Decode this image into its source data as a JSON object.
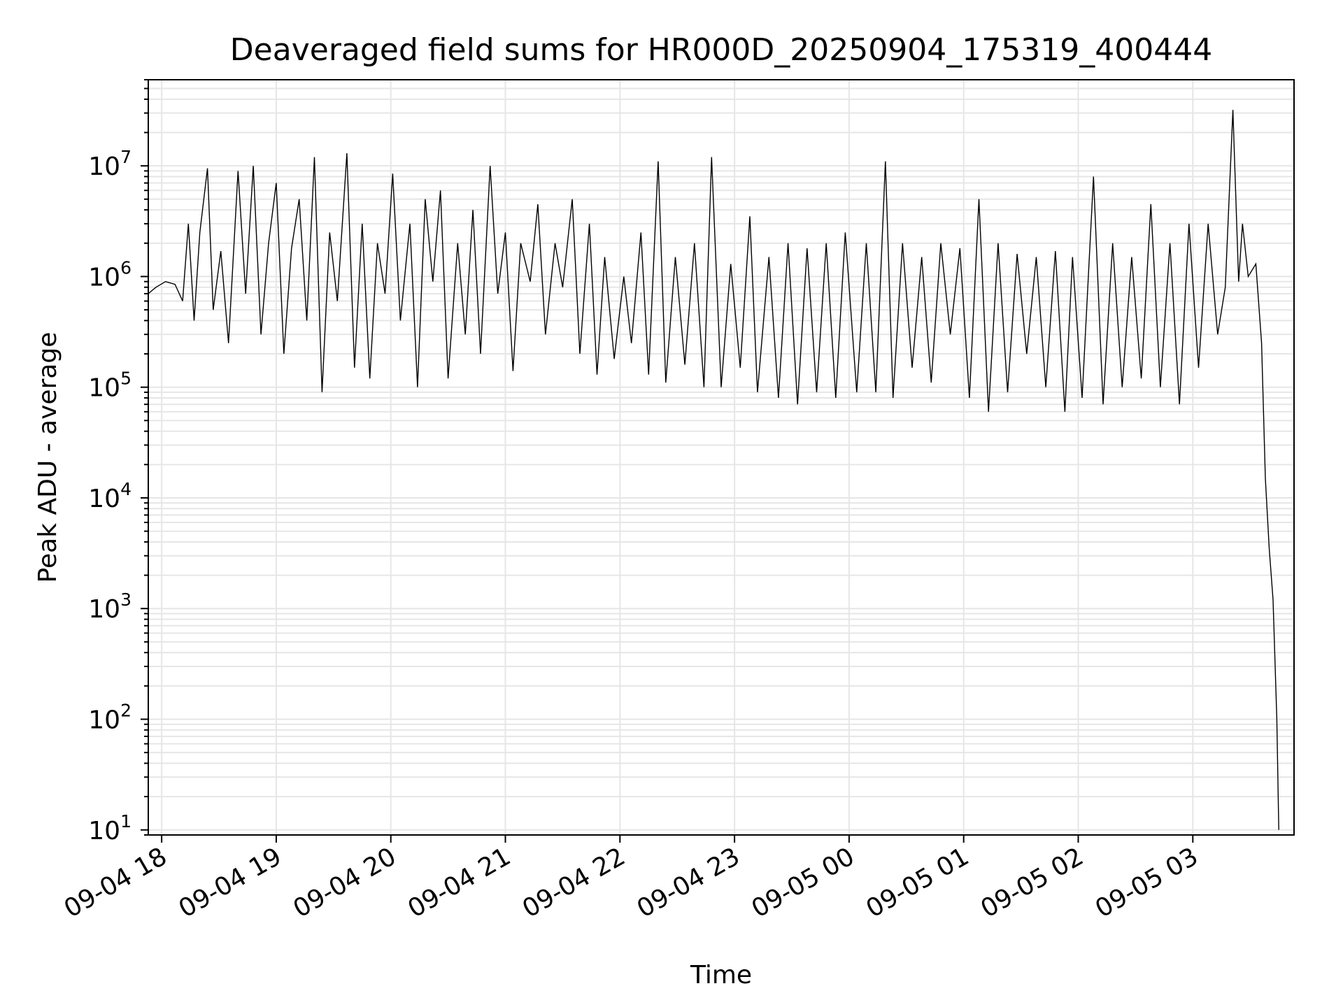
{
  "chart_data": {
    "type": "line",
    "title": "Deaveraged field sums for HR000D_20250904_175319_400444",
    "xlabel": "Time",
    "ylabel": "Peak ADU - average",
    "y_scale": "log",
    "ylim": [
      9,
      60000000
    ],
    "xlim": [
      "2025-09-04 17:53:00",
      "2025-09-05 03:53:00"
    ],
    "grid": true,
    "grid_minor": true,
    "x_ticks": [
      {
        "t": "2025-09-04 18:00",
        "label": "09-04 18"
      },
      {
        "t": "2025-09-04 19:00",
        "label": "09-04 19"
      },
      {
        "t": "2025-09-04 20:00",
        "label": "09-04 20"
      },
      {
        "t": "2025-09-04 21:00",
        "label": "09-04 21"
      },
      {
        "t": "2025-09-04 22:00",
        "label": "09-04 22"
      },
      {
        "t": "2025-09-04 23:00",
        "label": "09-04 23"
      },
      {
        "t": "2025-09-05 00:00",
        "label": "09-05 00"
      },
      {
        "t": "2025-09-05 01:00",
        "label": "09-05 01"
      },
      {
        "t": "2025-09-05 02:00",
        "label": "09-05 02"
      },
      {
        "t": "2025-09-05 03:00",
        "label": "09-05 03"
      }
    ],
    "y_ticks": [
      {
        "value": 10,
        "base": "10",
        "exp": "1"
      },
      {
        "value": 100,
        "base": "10",
        "exp": "2"
      },
      {
        "value": 1000,
        "base": "10",
        "exp": "3"
      },
      {
        "value": 10000,
        "base": "10",
        "exp": "4"
      },
      {
        "value": 100000,
        "base": "10",
        "exp": "5"
      },
      {
        "value": 1000000,
        "base": "10",
        "exp": "6"
      },
      {
        "value": 10000000,
        "base": "10",
        "exp": "7"
      }
    ],
    "series": [
      {
        "color": "#000000",
        "points": [
          [
            "2025-09-04 17:53",
            700000
          ],
          [
            "2025-09-04 17:57",
            800000
          ],
          [
            "2025-09-04 18:02",
            900000
          ],
          [
            "2025-09-04 18:07",
            850000
          ],
          [
            "2025-09-04 18:11",
            600000
          ],
          [
            "2025-09-04 18:14",
            3000000
          ],
          [
            "2025-09-04 18:17",
            400000
          ],
          [
            "2025-09-04 18:20",
            2500000
          ],
          [
            "2025-09-04 18:24",
            9500000
          ],
          [
            "2025-09-04 18:27",
            500000
          ],
          [
            "2025-09-04 18:31",
            1700000
          ],
          [
            "2025-09-04 18:35",
            250000
          ],
          [
            "2025-09-04 18:40",
            9000000
          ],
          [
            "2025-09-04 18:44",
            700000
          ],
          [
            "2025-09-04 18:48",
            10000000
          ],
          [
            "2025-09-04 18:52",
            300000
          ],
          [
            "2025-09-04 18:56",
            2000000
          ],
          [
            "2025-09-04 19:00",
            7000000
          ],
          [
            "2025-09-04 19:04",
            200000
          ],
          [
            "2025-09-04 19:08",
            1800000
          ],
          [
            "2025-09-04 19:12",
            5000000
          ],
          [
            "2025-09-04 19:16",
            400000
          ],
          [
            "2025-09-04 19:20",
            12000000
          ],
          [
            "2025-09-04 19:24",
            90000
          ],
          [
            "2025-09-04 19:28",
            2500000
          ],
          [
            "2025-09-04 19:32",
            600000
          ],
          [
            "2025-09-04 19:37",
            13000000
          ],
          [
            "2025-09-04 19:41",
            150000
          ],
          [
            "2025-09-04 19:45",
            3000000
          ],
          [
            "2025-09-04 19:49",
            120000
          ],
          [
            "2025-09-04 19:53",
            2000000
          ],
          [
            "2025-09-04 19:57",
            700000
          ],
          [
            "2025-09-04 20:01",
            8500000
          ],
          [
            "2025-09-04 20:05",
            400000
          ],
          [
            "2025-09-04 20:10",
            3000000
          ],
          [
            "2025-09-04 20:14",
            100000
          ],
          [
            "2025-09-04 20:18",
            5000000
          ],
          [
            "2025-09-04 20:22",
            900000
          ],
          [
            "2025-09-04 20:26",
            6000000
          ],
          [
            "2025-09-04 20:30",
            120000
          ],
          [
            "2025-09-04 20:35",
            2000000
          ],
          [
            "2025-09-04 20:39",
            300000
          ],
          [
            "2025-09-04 20:43",
            4000000
          ],
          [
            "2025-09-04 20:47",
            200000
          ],
          [
            "2025-09-04 20:52",
            10000000
          ],
          [
            "2025-09-04 20:56",
            700000
          ],
          [
            "2025-09-04 21:00",
            2500000
          ],
          [
            "2025-09-04 21:04",
            140000
          ],
          [
            "2025-09-04 21:08",
            2000000
          ],
          [
            "2025-09-04 21:13",
            900000
          ],
          [
            "2025-09-04 21:17",
            4500000
          ],
          [
            "2025-09-04 21:21",
            300000
          ],
          [
            "2025-09-04 21:26",
            2000000
          ],
          [
            "2025-09-04 21:30",
            800000
          ],
          [
            "2025-09-04 21:35",
            5000000
          ],
          [
            "2025-09-04 21:39",
            200000
          ],
          [
            "2025-09-04 21:44",
            3000000
          ],
          [
            "2025-09-04 21:48",
            130000
          ],
          [
            "2025-09-04 21:52",
            1500000
          ],
          [
            "2025-09-04 21:57",
            180000
          ],
          [
            "2025-09-04 22:02",
            1000000
          ],
          [
            "2025-09-04 22:06",
            250000
          ],
          [
            "2025-09-04 22:11",
            2500000
          ],
          [
            "2025-09-04 22:15",
            130000
          ],
          [
            "2025-09-04 22:20",
            11000000
          ],
          [
            "2025-09-04 22:24",
            110000
          ],
          [
            "2025-09-04 22:29",
            1500000
          ],
          [
            "2025-09-04 22:34",
            160000
          ],
          [
            "2025-09-04 22:39",
            2000000
          ],
          [
            "2025-09-04 22:44",
            100000
          ],
          [
            "2025-09-04 22:48",
            12000000
          ],
          [
            "2025-09-04 22:53",
            100000
          ],
          [
            "2025-09-04 22:58",
            1300000
          ],
          [
            "2025-09-04 23:03",
            150000
          ],
          [
            "2025-09-04 23:08",
            3500000
          ],
          [
            "2025-09-04 23:12",
            90000
          ],
          [
            "2025-09-04 23:18",
            1500000
          ],
          [
            "2025-09-04 23:23",
            80000
          ],
          [
            "2025-09-04 23:28",
            2000000
          ],
          [
            "2025-09-04 23:33",
            70000
          ],
          [
            "2025-09-04 23:38",
            1800000
          ],
          [
            "2025-09-04 23:43",
            90000
          ],
          [
            "2025-09-04 23:48",
            2000000
          ],
          [
            "2025-09-04 23:53",
            80000
          ],
          [
            "2025-09-04 23:58",
            2500000
          ],
          [
            "2025-09-05 00:04",
            90000
          ],
          [
            "2025-09-05 00:09",
            2000000
          ],
          [
            "2025-09-05 00:14",
            90000
          ],
          [
            "2025-09-05 00:19",
            11000000
          ],
          [
            "2025-09-05 00:23",
            80000
          ],
          [
            "2025-09-05 00:28",
            2000000
          ],
          [
            "2025-09-05 00:33",
            150000
          ],
          [
            "2025-09-05 00:38",
            1500000
          ],
          [
            "2025-09-05 00:43",
            110000
          ],
          [
            "2025-09-05 00:48",
            2000000
          ],
          [
            "2025-09-05 00:53",
            300000
          ],
          [
            "2025-09-05 00:58",
            1800000
          ],
          [
            "2025-09-05 01:03",
            80000
          ],
          [
            "2025-09-05 01:08",
            5000000
          ],
          [
            "2025-09-05 01:13",
            60000
          ],
          [
            "2025-09-05 01:18",
            2000000
          ],
          [
            "2025-09-05 01:23",
            90000
          ],
          [
            "2025-09-05 01:28",
            1600000
          ],
          [
            "2025-09-05 01:33",
            200000
          ],
          [
            "2025-09-05 01:38",
            1500000
          ],
          [
            "2025-09-05 01:43",
            100000
          ],
          [
            "2025-09-05 01:48",
            1700000
          ],
          [
            "2025-09-05 01:53",
            60000
          ],
          [
            "2025-09-05 01:57",
            1500000
          ],
          [
            "2025-09-05 02:02",
            80000
          ],
          [
            "2025-09-05 02:08",
            8000000
          ],
          [
            "2025-09-05 02:13",
            70000
          ],
          [
            "2025-09-05 02:18",
            2000000
          ],
          [
            "2025-09-05 02:23",
            100000
          ],
          [
            "2025-09-05 02:28",
            1500000
          ],
          [
            "2025-09-05 02:33",
            120000
          ],
          [
            "2025-09-05 02:38",
            4500000
          ],
          [
            "2025-09-05 02:43",
            100000
          ],
          [
            "2025-09-05 02:48",
            2000000
          ],
          [
            "2025-09-05 02:53",
            70000
          ],
          [
            "2025-09-05 02:58",
            3000000
          ],
          [
            "2025-09-05 03:03",
            150000
          ],
          [
            "2025-09-05 03:08",
            3000000
          ],
          [
            "2025-09-05 03:13",
            300000
          ],
          [
            "2025-09-05 03:17",
            800000
          ],
          [
            "2025-09-05 03:21",
            32000000
          ],
          [
            "2025-09-05 03:24",
            900000
          ],
          [
            "2025-09-05 03:26",
            3000000
          ],
          [
            "2025-09-05 03:29",
            1000000
          ],
          [
            "2025-09-05 03:33",
            1300000
          ],
          [
            "2025-09-05 03:36",
            250000
          ],
          [
            "2025-09-05 03:38",
            15000
          ],
          [
            "2025-09-05 03:40",
            3500
          ],
          [
            "2025-09-05 03:42",
            1200
          ],
          [
            "2025-09-05 03:44",
            100
          ],
          [
            "2025-09-05 03:45",
            10
          ]
        ]
      }
    ]
  }
}
